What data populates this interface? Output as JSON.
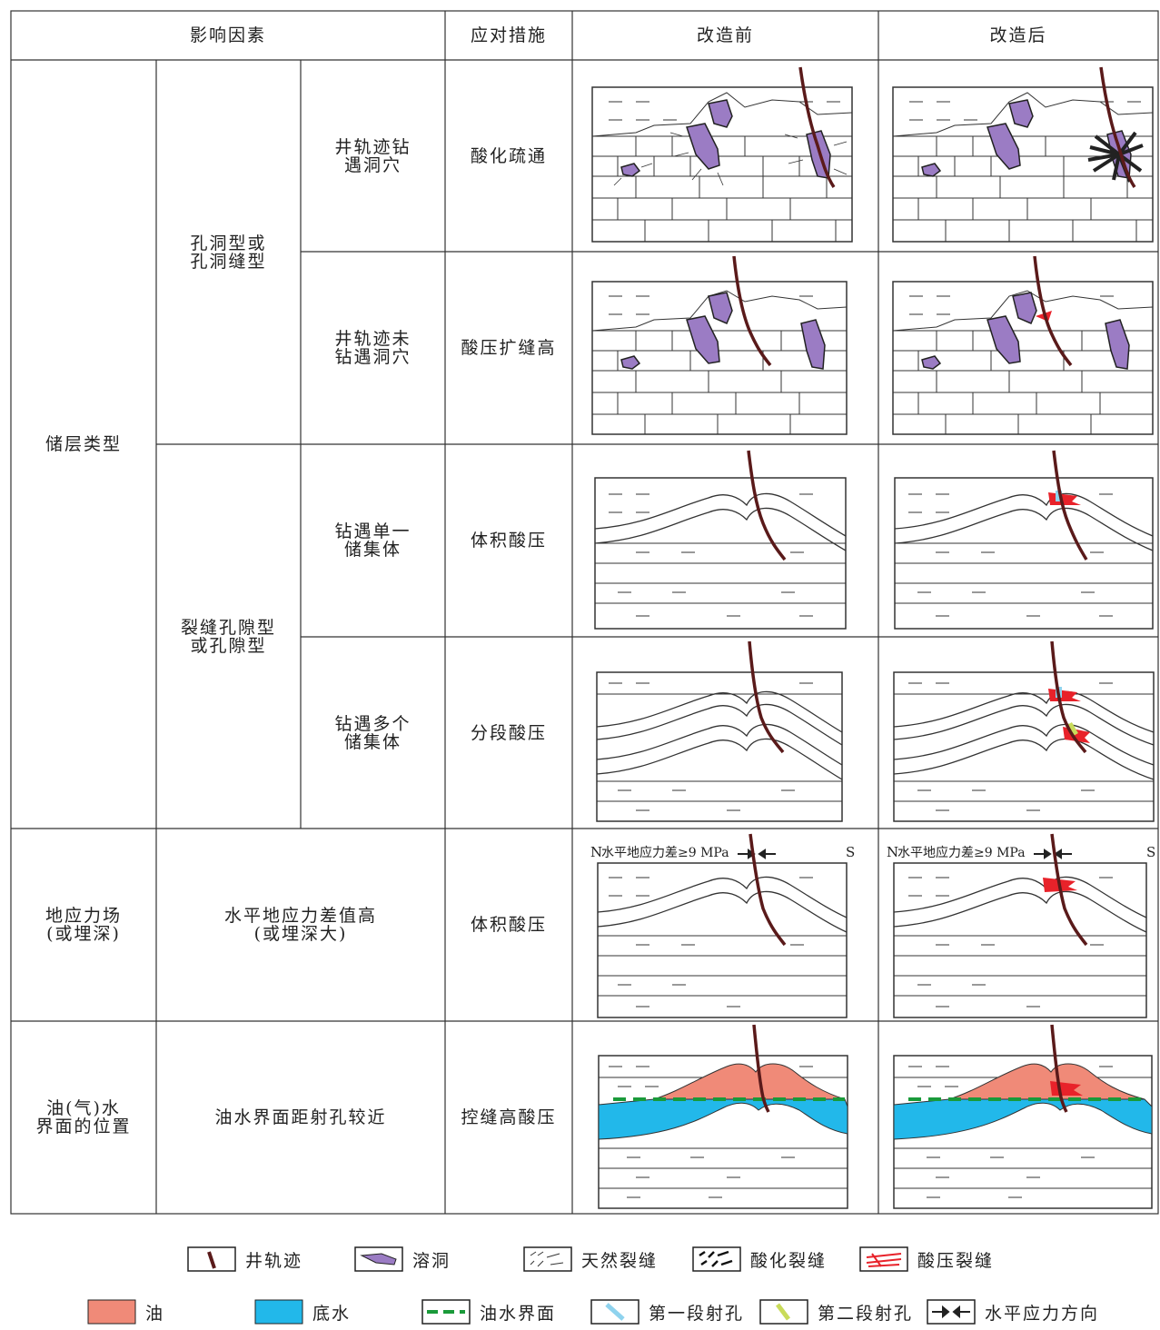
{
  "header": {
    "factors": "影响因素",
    "measures": "应对措施",
    "before": "改造前",
    "after": "改造后"
  },
  "factors": {
    "reservoir_type": "储层类型",
    "vuggy": "孔洞型或\n孔洞缝型",
    "fractured": "裂缝孔隙型\n或孔隙型",
    "hit_cave": "井轨迹钻\n遇洞穴",
    "miss_cave": "井轨迹未\n钻遇洞穴",
    "single_body": "钻遇单一\n储集体",
    "multi_body": "钻遇多个\n储集体",
    "stress_field": "地应力场\n(或埋深)",
    "stress_diff": "水平地应力差值高\n(或埋深大)",
    "owc_position": "油(气)水\n界面的位置",
    "owc_near": "油水界面距射孔较近"
  },
  "measures": {
    "acidize": "酸化疏通",
    "acid_frac_height": "酸压扩缝高",
    "volume_frac_1": "体积酸压",
    "staged_frac": "分段酸压",
    "volume_frac_2": "体积酸压",
    "control_height": "控缝高酸压"
  },
  "stress_label": {
    "north": "N",
    "text": "水平地应力差≥9 MPa",
    "south": "S"
  },
  "legend": {
    "well": "井轨迹",
    "cave": "溶洞",
    "natural_frac": "天然裂缝",
    "acid_frac": "酸化裂缝",
    "acidfrac_frac": "酸压裂缝",
    "oil": "油",
    "bottom_water": "底水",
    "owc": "油水界面",
    "perf1": "第一段射孔",
    "perf2": "第二段射孔",
    "stress_dir": "水平应力方向"
  },
  "colors": {
    "well": "#5a1a1a",
    "cave": "#9b7cc4",
    "acid_frac_red": "#e8222a",
    "oil": "#f08a78",
    "water": "#22b8ea",
    "owc": "#1a9a3a",
    "perf1": "#8fd3ee",
    "perf2": "#c9db5a"
  }
}
